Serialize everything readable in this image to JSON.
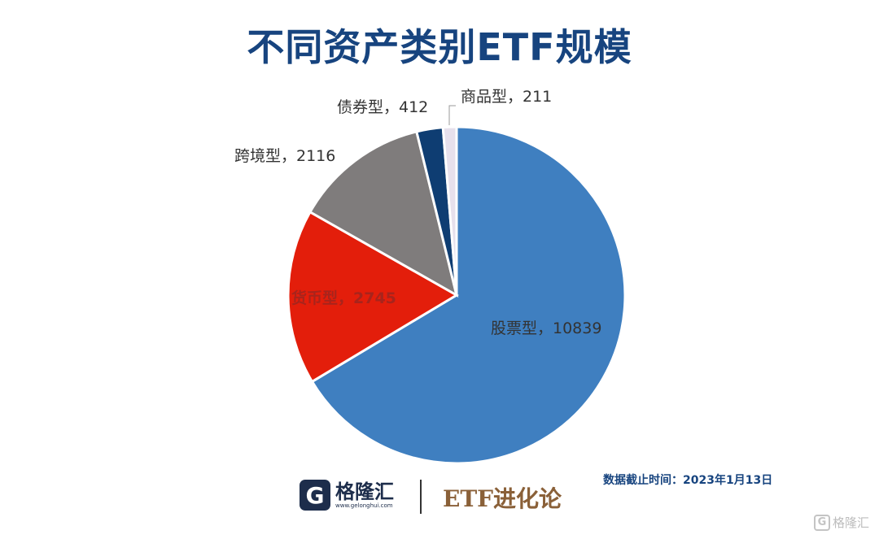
{
  "title": "不同资产类别ETF规模",
  "chart_data": {
    "type": "pie",
    "categories": [
      "股票型",
      "货币型",
      "跨境型",
      "债券型",
      "商品型"
    ],
    "values": [
      10839,
      2745,
      2116,
      412,
      211
    ],
    "labels": [
      "股票型，10839",
      "货币型，2745",
      "跨境型，2116",
      "债券型，412",
      "商品型，211"
    ],
    "colors": [
      "#3f7fc0",
      "#e31e0b",
      "#7f7c7c",
      "#0e3d72",
      "#e6e0ec"
    ],
    "start": "12 o'clock",
    "direction": "clockwise"
  },
  "footer": {
    "logo_text": "格隆汇",
    "logo_letter": "G",
    "logo_url": "www.gelonghui.com",
    "brand": "ETF进化论",
    "date_note": "数据截止时间：2023年1月13日"
  },
  "watermark": {
    "text": "格隆汇",
    "letter": "G"
  }
}
